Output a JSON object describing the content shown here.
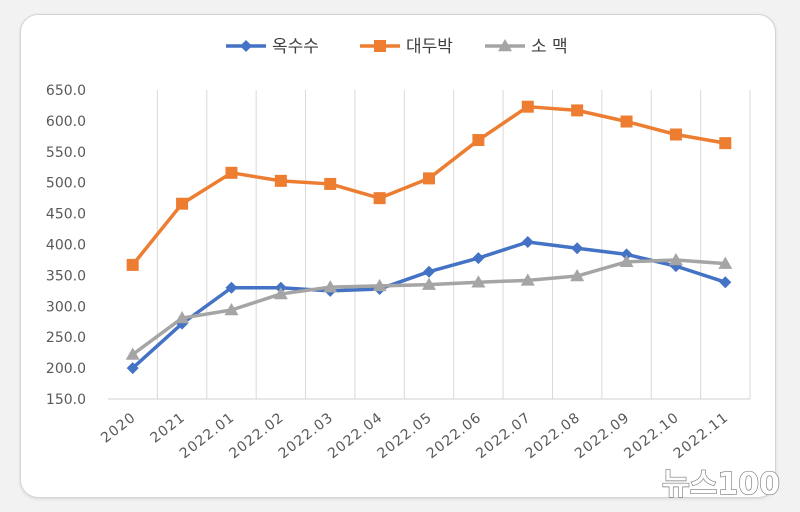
{
  "chart_data": {
    "type": "line",
    "categories": [
      "2020",
      "2021",
      "2022.01",
      "2022.02",
      "2022.03",
      "2022.04",
      "2022.05",
      "2022.06",
      "2022.07",
      "2022.08",
      "2022.09",
      "2022.10",
      "2022.11"
    ],
    "series": [
      {
        "name": "옥수수",
        "color": "#4472C4",
        "marker": "diamond",
        "values": [
          200,
          272,
          330,
          330,
          325,
          328,
          356,
          378,
          404,
          394,
          384,
          365,
          339
        ]
      },
      {
        "name": "대두박",
        "color": "#ED7D31",
        "marker": "square",
        "values": [
          367,
          466,
          516,
          503,
          498,
          475,
          507,
          569,
          623,
          617,
          599,
          578,
          564
        ]
      },
      {
        "name": "소 맥",
        "color": "#A5A5A5",
        "marker": "triangle",
        "values": [
          222,
          281,
          294,
          320,
          331,
          333,
          335,
          339,
          342,
          349,
          372,
          375,
          369
        ]
      }
    ],
    "yticks": [
      "150.0",
      "200.0",
      "250.0",
      "300.0",
      "350.0",
      "400.0",
      "450.0",
      "500.0",
      "550.0",
      "600.0",
      "650.0"
    ],
    "ylim": [
      150,
      650
    ],
    "grid": "vertical",
    "legend": "top"
  },
  "watermark": "뉴스100"
}
